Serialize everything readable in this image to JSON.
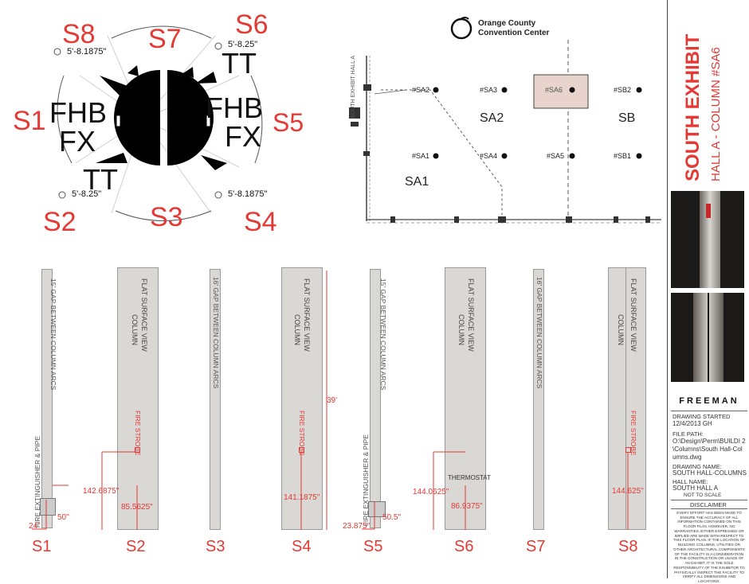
{
  "overview": {
    "sections": [
      "S1",
      "S2",
      "S3",
      "S4",
      "S5",
      "S6",
      "S7",
      "S8"
    ],
    "left_half_label": [
      "FHB",
      "FX"
    ],
    "right_half_label": [
      "FHB",
      "FX"
    ],
    "tt": "TT",
    "dims": {
      "s8": "5'-8.1875\"",
      "s6": "5'-8.25\"",
      "s2": "5'-8.25\"",
      "s4": "5'-8.1875\""
    }
  },
  "floorplan": {
    "logo_line1": "Orange County",
    "logo_line2": "Convention Center",
    "side_label": "SOUTH EXHIBIT HALL A",
    "columns": [
      "#SA2",
      "#SA3",
      "#SA6",
      "#SB2",
      "#SA1",
      "#SA4",
      "#SA5",
      "#SB1"
    ],
    "zones": [
      "SA1",
      "SA2",
      "SB"
    ]
  },
  "elevations": [
    {
      "label": "S1",
      "gap": "15' GAP BETWEEN COLUMN ARCS",
      "note": "FIRE EXTINGUISHER & PIPE",
      "dim_a": "24\"",
      "dim_b": "50\""
    },
    {
      "label": "S2",
      "title": "COLUMN",
      "subtitle": "FLAT SURFACE VIEW",
      "device": "FIRE STROBE",
      "dim_a": "142.6875\"",
      "dim_b": "85.5625\""
    },
    {
      "label": "S3",
      "gap": "16' GAP BETWEEN COLUMN ARCS"
    },
    {
      "label": "S4",
      "title": "COLUMN",
      "subtitle": "FLAT SURFACE VIEW",
      "device": "FIRE STROBE",
      "dim_a": "39'",
      "dim_b": "141.1875\""
    },
    {
      "label": "S5",
      "gap": "15' GAP BETWEEN COLUMN ARCS",
      "note": "FIRE EXTINGUISHER & PIPE",
      "dim_a": "23.875\"",
      "dim_b": "50.5\""
    },
    {
      "label": "S6",
      "title": "COLUMN",
      "subtitle": "FLAT SURFACE VIEW",
      "device": "THERMOSTAT",
      "dim_a": "144.0625\"",
      "dim_b": "86.9375\""
    },
    {
      "label": "S7",
      "gap": "16' GAP BETWEEN COLUMN ARCS"
    },
    {
      "label": "S8",
      "title": "COLUMN",
      "subtitle": "FLAT SURFACE VIEW",
      "device": "FIRE STROBE",
      "dim_a": "144.625\""
    }
  ],
  "sidebar": {
    "title": "SOUTH EXHIBIT",
    "subtitle": "HALL A - COLUMN #SA6",
    "brand": "FREEMAN",
    "drawing_started_label": "DRAWING STARTED",
    "drawing_started": "12/4/2013  GH",
    "file_path_label": "FILE PATH:",
    "file_path": "O:\\Design\\Perm\\BUILDI 2\\Columns\\South Hall-Columns.dwg",
    "drawing_name_label": "DRAWING NAME:",
    "drawing_name": "SOUTH HALL-COLUMNS",
    "hall_name_label": "HALL NAME:",
    "hall_name": "SOUTH HALL A",
    "scale": "NOT TO SCALE",
    "disclaimer_label": "DISCLAIMER",
    "disclaimer": "EVERY EFFORT HAS BEEN MADE TO ENSURE THE ACCURACY OF ALL INFORMATION CONTAINED ON THIS FLOOR PLAN. HOWEVER, NO WARRANTIES, EITHER EXPRESSED OR IMPLIED ARE MADE WITH RESPECT TO THIS FLOOR PLAN. IF THE LOCATION OF BUILDING COLUMNS, UTILITIES OR OTHER ARCHITECTURAL COMPONENTS OF THE FACILITY IS A CONSIDERATION IN THE CONSTRUCTION OR USAGE OF AN EXHIBIT, IT IS THE SOLE RESPONSIBILITY OF THE EXHIBITOR TO PHYSICALLY INSPECT THE FACILITY TO VERIFY ALL DIMENSIONS AND LOCATIONS."
  }
}
